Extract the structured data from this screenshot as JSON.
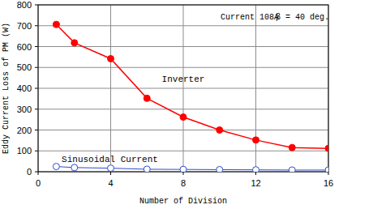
{
  "chart_data": {
    "type": "line",
    "x_label": "Number of Division",
    "y_label": "Eddy Current Loss of PM (W)",
    "annotations": [
      "Current 108A",
      "β = 40 deg."
    ],
    "x": [
      1,
      2,
      4,
      6,
      8,
      10,
      12,
      14,
      16
    ],
    "series": [
      {
        "name": "Inverter",
        "color": "#ff0000",
        "marker": "filled_circle",
        "line_style": "solid",
        "values": [
          706,
          618,
          542,
          352,
          262,
          200,
          152,
          116,
          112
        ]
      },
      {
        "name": "Sinusoidal Current",
        "color": "#2e4bd0",
        "marker": "open_circle",
        "line_style": "solid",
        "values": [
          25,
          20,
          17,
          12,
          11,
          10,
          9,
          8,
          8
        ]
      }
    ],
    "xlim": [
      0,
      16
    ],
    "xticks": [
      0,
      4,
      8,
      12,
      16
    ],
    "ylim": [
      0,
      800
    ],
    "yticks": [
      0,
      100,
      200,
      300,
      400,
      500,
      600,
      700,
      800
    ],
    "grid": true
  }
}
